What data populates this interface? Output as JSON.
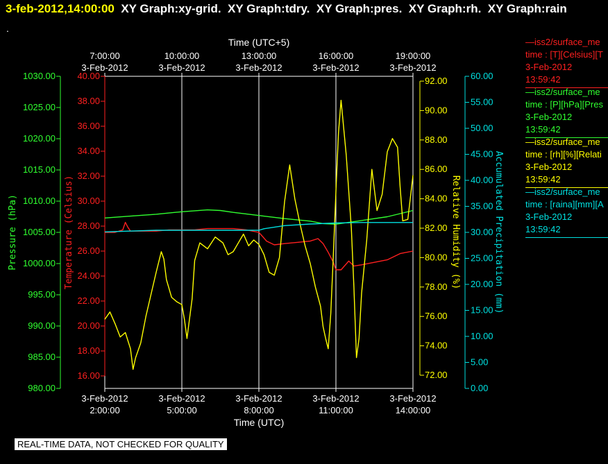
{
  "header": {
    "timestamp": "3-feb-2012,14:00:00",
    "graphs": [
      "XY Graph:xy-grid.",
      "XY Graph:tdry.",
      "XY Graph:pres.",
      "XY Graph:rh.",
      "XY Graph:rain"
    ],
    "dot": "."
  },
  "footer": {
    "notice": "REAL-TIME DATA, NOT CHECKED FOR QUALITY"
  },
  "colors": {
    "temperature": "#ff2020",
    "pressure": "#30ff30",
    "humidity": "#ffff00",
    "precipitation": "#00e0e0",
    "grid": "#ffffff",
    "background": "#000000"
  },
  "legend": [
    {
      "color": "#ff2020",
      "lines": [
        "—iss2/surface_me",
        "time : [T][Celsius][T",
        "3-Feb-2012",
        "13:59:42"
      ]
    },
    {
      "color": "#30ff30",
      "lines": [
        "—iss2/surface_me",
        "time : [P][hPa][Pres",
        "3-Feb-2012",
        "13:59:42"
      ]
    },
    {
      "color": "#ffff00",
      "lines": [
        "—iss2/surface_me",
        "time : [rh][%][Relati",
        "3-Feb-2012",
        "13:59:42"
      ]
    },
    {
      "color": "#00e0e0",
      "lines": [
        "—iss2/surface_me",
        "time : [raina][mm][A",
        "3-Feb-2012",
        "13:59:42"
      ]
    }
  ],
  "chart_data": {
    "type": "line",
    "x_unit": "hours UTC (3-Feb-2012)",
    "xlim": [
      2.0,
      14.0
    ],
    "x_bottom": {
      "label": "Time (UTC)",
      "ticks": [
        {
          "x": 2,
          "date": "3-Feb-2012",
          "time": "2:00:00"
        },
        {
          "x": 5,
          "date": "3-Feb-2012",
          "time": "5:00:00"
        },
        {
          "x": 8,
          "date": "3-Feb-2012",
          "time": "8:00:00"
        },
        {
          "x": 11,
          "date": "3-Feb-2012",
          "time": "11:00:00"
        },
        {
          "x": 14,
          "date": "3-Feb-2012",
          "time": "14:00:00"
        }
      ]
    },
    "x_top": {
      "label": "Time (UTC+5)",
      "ticks": [
        {
          "x": 2,
          "date": "3-Feb-2012",
          "time": "7:00:00"
        },
        {
          "x": 5,
          "date": "3-Feb-2012",
          "time": "10:00:00"
        },
        {
          "x": 8,
          "date": "3-Feb-2012",
          "time": "13:00:00"
        },
        {
          "x": 11,
          "date": "3-Feb-2012",
          "time": "16:00:00"
        },
        {
          "x": 14,
          "date": "3-Feb-2012",
          "time": "19:00:00"
        }
      ]
    },
    "axes": {
      "pressure": {
        "label": "Pressure (hPa)",
        "range": [
          980,
          1030
        ],
        "ticks": [
          "980.00",
          "985.00",
          "990.00",
          "995.00",
          "1000.00",
          "1005.00",
          "1010.00",
          "1015.00",
          "1020.00",
          "1025.00",
          "1030.00"
        ]
      },
      "temperature": {
        "label": "Temperature (Celsius)",
        "range": [
          15,
          40
        ],
        "ticks": [
          "16.00",
          "18.00",
          "20.00",
          "22.00",
          "24.00",
          "26.00",
          "28.00",
          "30.00",
          "32.00",
          "34.00",
          "36.00",
          "38.00",
          "40.00"
        ]
      },
      "humidity": {
        "label": "Relative Humidity (%)",
        "range": [
          71,
          92
        ],
        "ticks": [
          "72.00",
          "74.00",
          "76.00",
          "78.00",
          "80.00",
          "82.00",
          "84.00",
          "86.00",
          "88.00",
          "90.00",
          "92.00"
        ]
      },
      "precipitation": {
        "label": "Accumulated Precipitation (mm)",
        "range": [
          0,
          60
        ],
        "ticks": [
          "0.00",
          "5.00",
          "10.00",
          "15.00",
          "20.00",
          "25.00",
          "30.00",
          "35.00",
          "40.00",
          "45.00",
          "50.00",
          "55.00",
          "60.00"
        ]
      }
    },
    "series": [
      {
        "name": "Pressure",
        "axis": "pressure",
        "color": "#30ff30",
        "x": [
          2.0,
          3.0,
          4.0,
          4.5,
          5.0,
          6.0,
          6.5,
          7.0,
          8.0,
          9.0,
          10.0,
          10.5,
          11.0,
          11.5,
          12.0,
          12.5,
          13.0,
          13.5,
          14.0
        ],
        "y": [
          1007.3,
          1007.6,
          1007.9,
          1008.1,
          1008.3,
          1008.6,
          1008.5,
          1008.2,
          1007.7,
          1007.2,
          1006.8,
          1006.4,
          1006.3,
          1006.6,
          1006.9,
          1007.2,
          1007.5,
          1008.0,
          1008.5
        ]
      },
      {
        "name": "Temperature",
        "axis": "temperature",
        "color": "#ff2020",
        "x": [
          2.0,
          2.4,
          2.7,
          2.8,
          2.9,
          3.0,
          3.5,
          4.0,
          4.5,
          5.0,
          5.5,
          6.0,
          6.5,
          7.0,
          7.5,
          8.0,
          8.3,
          8.6,
          9.0,
          9.5,
          10.0,
          10.3,
          10.5,
          10.7,
          10.8,
          10.9,
          11.0,
          11.2,
          11.5,
          11.7,
          12.0,
          12.5,
          13.0,
          13.5,
          14.0
        ],
        "y": [
          27.5,
          27.5,
          27.7,
          28.3,
          27.9,
          27.6,
          27.6,
          27.6,
          27.7,
          27.7,
          27.7,
          27.8,
          27.8,
          27.8,
          27.7,
          27.5,
          26.8,
          26.5,
          26.6,
          26.7,
          26.8,
          27.0,
          26.6,
          25.9,
          25.5,
          25.1,
          24.5,
          24.5,
          25.2,
          24.8,
          24.9,
          25.1,
          25.3,
          25.8,
          26.0
        ]
      },
      {
        "name": "Relative Humidity",
        "axis": "humidity",
        "color": "#ffff00",
        "x": [
          2.0,
          2.2,
          2.4,
          2.6,
          2.8,
          3.0,
          3.1,
          3.2,
          3.4,
          3.6,
          3.8,
          4.0,
          4.2,
          4.3,
          4.4,
          4.6,
          4.8,
          5.0,
          5.1,
          5.2,
          5.4,
          5.5,
          5.7,
          6.0,
          6.3,
          6.6,
          6.8,
          7.0,
          7.2,
          7.4,
          7.6,
          7.8,
          8.0,
          8.2,
          8.4,
          8.6,
          8.8,
          9.0,
          9.2,
          9.4,
          9.6,
          9.8,
          10.0,
          10.2,
          10.4,
          10.5,
          10.6,
          10.7,
          10.8,
          10.9,
          11.0,
          11.1,
          11.2,
          11.4,
          11.6,
          11.7,
          11.8,
          11.9,
          12.0,
          12.2,
          12.4,
          12.6,
          12.8,
          13.0,
          13.2,
          13.4,
          13.5,
          13.6,
          13.8,
          14.0
        ],
        "y": [
          75.8,
          76.3,
          75.5,
          74.6,
          74.9,
          73.8,
          72.4,
          73.2,
          74.2,
          76.0,
          77.5,
          79.0,
          80.4,
          79.9,
          78.5,
          77.3,
          77.0,
          76.8,
          75.8,
          74.5,
          77.2,
          79.8,
          81.0,
          80.6,
          81.4,
          81.0,
          80.2,
          80.4,
          81.0,
          81.6,
          80.8,
          81.2,
          80.9,
          80.2,
          79.0,
          78.8,
          80.0,
          83.8,
          86.3,
          84.0,
          82.3,
          80.8,
          79.6,
          78.0,
          76.7,
          75.3,
          74.5,
          73.8,
          76.2,
          80.2,
          84.5,
          88.5,
          90.7,
          87.0,
          82.0,
          78.0,
          73.2,
          74.5,
          77.6,
          81.2,
          86.0,
          83.2,
          84.3,
          87.2,
          88.1,
          87.5,
          84.8,
          82.5,
          82.6,
          85.6
        ]
      },
      {
        "name": "Accumulated Precipitation",
        "axis": "precipitation",
        "color": "#00e0e0",
        "x": [
          2.0,
          4.0,
          6.0,
          8.0,
          8.2,
          9.0,
          10.0,
          11.0,
          12.0,
          13.0,
          14.0
        ],
        "y": [
          30.1,
          30.4,
          30.4,
          30.4,
          30.7,
          31.3,
          31.6,
          31.8,
          31.9,
          31.9,
          31.9
        ]
      }
    ]
  }
}
